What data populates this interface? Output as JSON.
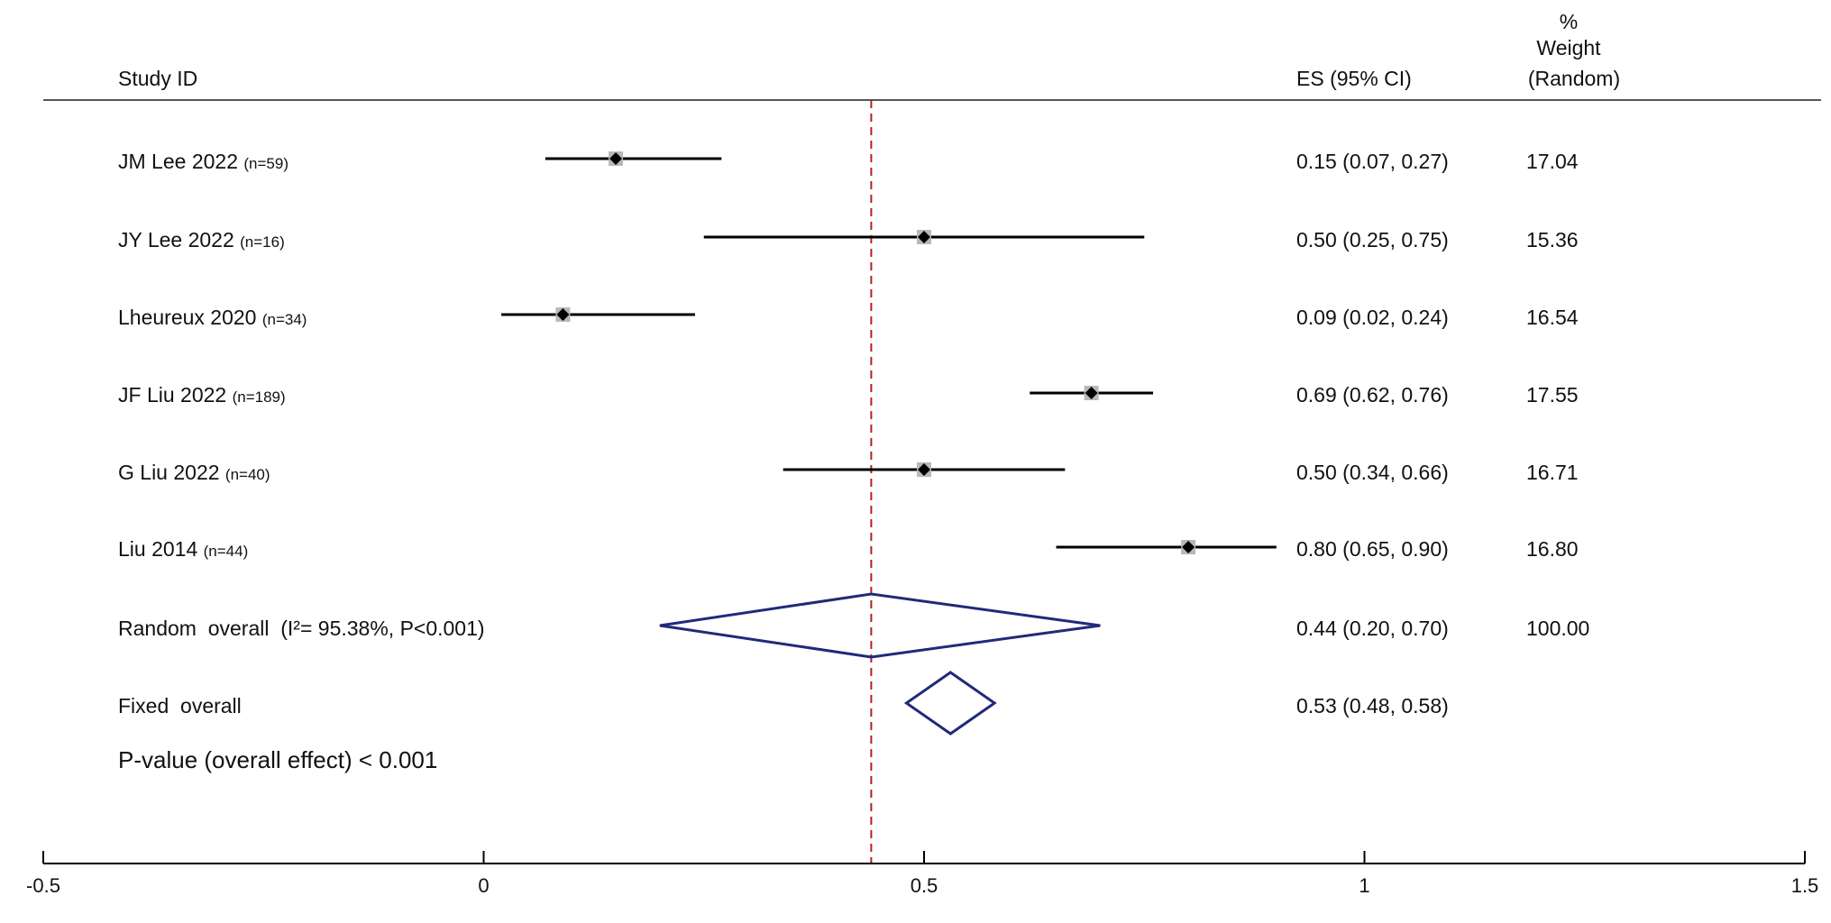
{
  "chart_data": {
    "type": "forest",
    "headers": {
      "study": "Study ID",
      "es": "ES (95% CI)",
      "weight": [
        "%",
        "Weight",
        "(Random)"
      ]
    },
    "studies": [
      {
        "label": "JM Lee 2022",
        "n": "(n=59)",
        "es": 0.15,
        "lo": 0.07,
        "hi": 0.27,
        "es_text": "0.15 (0.07, 0.27)",
        "weight": "17.04"
      },
      {
        "label": "JY Lee 2022",
        "n": "(n=16)",
        "es": 0.5,
        "lo": 0.25,
        "hi": 0.75,
        "es_text": "0.50 (0.25, 0.75)",
        "weight": "15.36"
      },
      {
        "label": "Lheureux 2020",
        "n": "(n=34)",
        "es": 0.09,
        "lo": 0.02,
        "hi": 0.24,
        "es_text": "0.09 (0.02, 0.24)",
        "weight": "16.54"
      },
      {
        "label": "JF Liu 2022",
        "n": "(n=189)",
        "es": 0.69,
        "lo": 0.62,
        "hi": 0.76,
        "es_text": "0.69 (0.62, 0.76)",
        "weight": "17.55"
      },
      {
        "label": "G Liu 2022",
        "n": "(n=40)",
        "es": 0.5,
        "lo": 0.34,
        "hi": 0.66,
        "es_text": "0.50 (0.34, 0.66)",
        "weight": "16.71"
      },
      {
        "label": "Liu 2014",
        "n": "(n=44)",
        "es": 0.8,
        "lo": 0.65,
        "hi": 0.9,
        "es_text": "0.80 (0.65, 0.90)",
        "weight": "16.80"
      }
    ],
    "random_overall": {
      "label": "Random  overall  (I²= 95.38%, P<0.001)",
      "es": 0.44,
      "lo": 0.2,
      "hi": 0.7,
      "es_text": "0.44 (0.20, 0.70)",
      "weight": "100.00"
    },
    "fixed_overall": {
      "label": "Fixed  overall",
      "es": 0.53,
      "lo": 0.48,
      "hi": 0.58,
      "es_text": "0.53 (0.48, 0.58)"
    },
    "pvalue_text": "P-value (overall effect) < 0.001",
    "xlim": [
      -0.5,
      1.5
    ],
    "xticks": [
      -0.5,
      0,
      0.5,
      1,
      1.5
    ],
    "xtick_labels": [
      "-0.5",
      "0",
      "0.5",
      "1",
      "1.5"
    ],
    "reference_line": 0.44,
    "colors": {
      "diamond": "#1f2a7a",
      "reference": "#b22222",
      "ci": "#000000"
    }
  }
}
